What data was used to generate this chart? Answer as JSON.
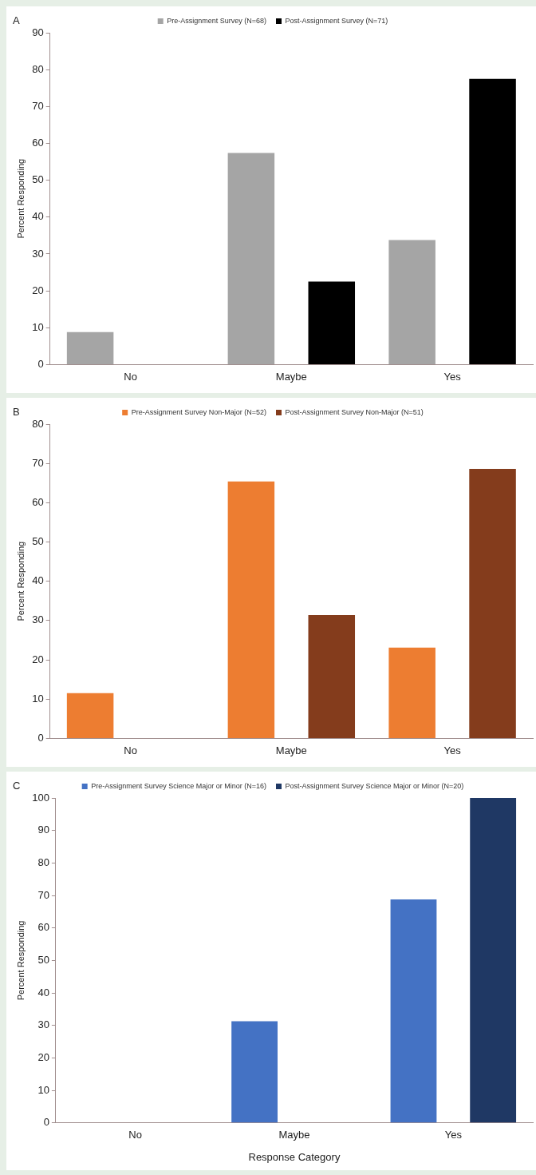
{
  "chart_data": [
    {
      "type": "bar",
      "title": "A",
      "categories": [
        "No",
        "Maybe",
        "Yes"
      ],
      "ylabel": "Percent Responding",
      "ylim": [
        0,
        90
      ],
      "yticks": [
        0,
        10,
        20,
        30,
        40,
        50,
        60,
        70,
        80,
        90
      ],
      "grid": false,
      "legend": "top",
      "series": [
        {
          "name": "Pre-Assignment Survey (N=68)",
          "color": "#a5a5a5",
          "values": [
            8.8,
            57.4,
            33.8
          ]
        },
        {
          "name": "Post-Assignment Survey (N=71)",
          "color": "#000000",
          "values": [
            0,
            22.5,
            77.5
          ]
        }
      ]
    },
    {
      "type": "bar",
      "title": "B",
      "categories": [
        "No",
        "Maybe",
        "Yes"
      ],
      "ylabel": "Percent Responding",
      "ylim": [
        0,
        80
      ],
      "yticks": [
        0,
        10,
        20,
        30,
        40,
        50,
        60,
        70,
        80
      ],
      "grid": false,
      "legend": "top",
      "series": [
        {
          "name": "Pre-Assignment Survey Non-Major (N=52)",
          "color": "#ed7d31",
          "values": [
            11.5,
            65.4,
            23.1
          ]
        },
        {
          "name": "Post-Assignment Survey Non-Major (N=51)",
          "color": "#843c1c",
          "values": [
            0,
            31.4,
            68.6
          ]
        }
      ]
    },
    {
      "type": "bar",
      "title": "C",
      "categories": [
        "No",
        "Maybe",
        "Yes"
      ],
      "xlabel": "Response Category",
      "ylabel": "Percent Responding",
      "ylim": [
        0,
        100
      ],
      "yticks": [
        0,
        10,
        20,
        30,
        40,
        50,
        60,
        70,
        80,
        90,
        100
      ],
      "grid": false,
      "legend": "top",
      "series": [
        {
          "name": "Pre-Assignment Survey Science Major or Minor (N=16)",
          "color": "#4472c4",
          "values": [
            0,
            31.3,
            68.8
          ]
        },
        {
          "name": "Post-Assignment Survey Science Major or Minor (N=20)",
          "color": "#1f3864",
          "values": [
            0,
            0,
            100
          ]
        }
      ]
    }
  ]
}
